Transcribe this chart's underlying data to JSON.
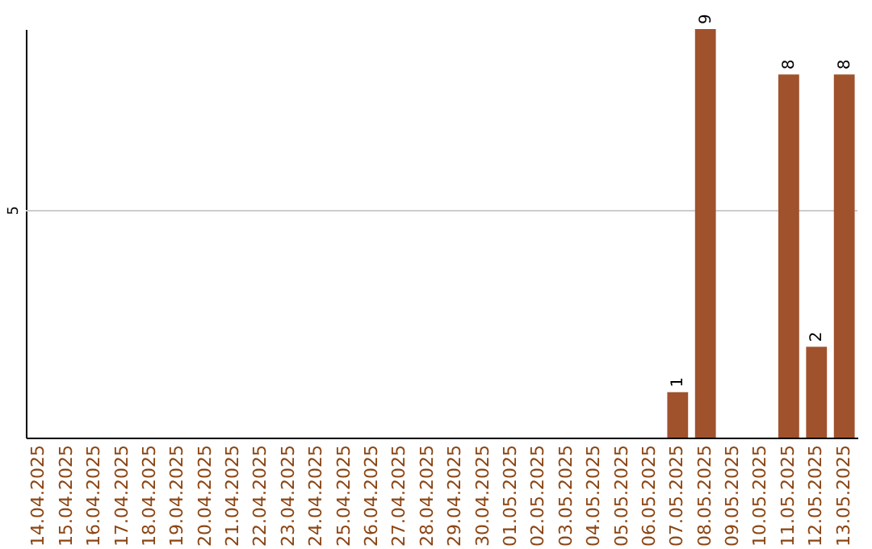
{
  "chart_data": {
    "type": "bar",
    "categories": [
      "14.04.2025",
      "15.04.2025",
      "16.04.2025",
      "17.04.2025",
      "18.04.2025",
      "19.04.2025",
      "20.04.2025",
      "21.04.2025",
      "22.04.2025",
      "23.04.2025",
      "24.04.2025",
      "25.04.2025",
      "26.04.2025",
      "27.04.2025",
      "28.04.2025",
      "29.04.2025",
      "30.04.2025",
      "01.05.2025",
      "02.05.2025",
      "03.05.2025",
      "04.05.2025",
      "05.05.2025",
      "06.05.2025",
      "07.05.2025",
      "08.05.2025",
      "09.05.2025",
      "10.05.2025",
      "11.05.2025",
      "12.05.2025",
      "13.05.2025"
    ],
    "values": [
      null,
      null,
      null,
      null,
      null,
      null,
      null,
      null,
      null,
      null,
      null,
      null,
      null,
      null,
      null,
      null,
      null,
      null,
      null,
      null,
      null,
      null,
      null,
      1,
      9,
      null,
      null,
      8,
      2,
      8
    ],
    "data_labels": true,
    "color": "#a0522d",
    "ref_lines": [
      {
        "axis": "y",
        "value": 5,
        "label": "5",
        "color": "#cccccc"
      }
    ]
  }
}
